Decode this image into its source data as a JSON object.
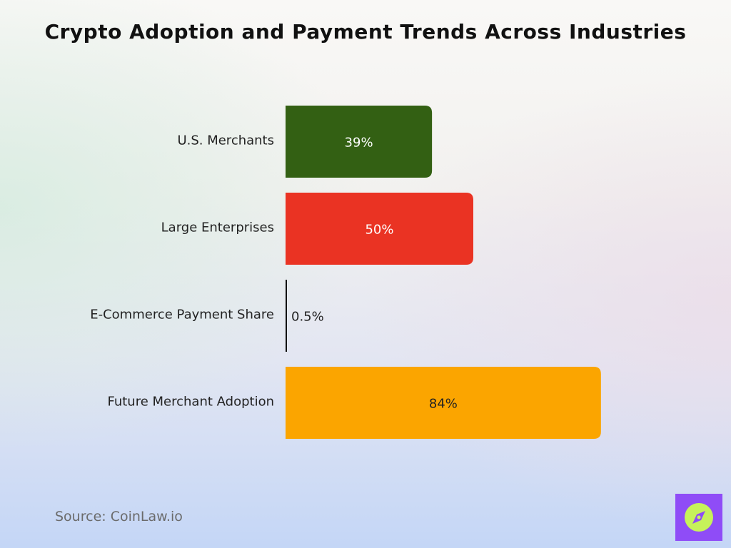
{
  "title": "Crypto Adoption and Payment Trends Across Industries",
  "source": "Source: CoinLaw.io",
  "logo": {
    "icon": "compass-icon",
    "background": "#8f4cf7",
    "circle": "#c6f25a"
  },
  "chart_data": {
    "type": "bar",
    "orientation": "horizontal",
    "title": "Crypto Adoption and Payment Trends Across Industries",
    "xlabel": "",
    "ylabel": "",
    "xlim": [
      0,
      100
    ],
    "grid": false,
    "categories": [
      "U.S. Merchants",
      "Large Enterprises",
      "E-Commerce Payment Share",
      "Future Merchant Adoption"
    ],
    "values": [
      39,
      50,
      0.5,
      84
    ],
    "labels": [
      "39%",
      "50%",
      "0.5%",
      "84%"
    ],
    "colors": [
      "#336013",
      "#ea3323",
      "#111111",
      "#fba500"
    ],
    "label_colors": [
      "#ffffff",
      "#ffffff",
      "#222222",
      "#222222"
    ]
  }
}
